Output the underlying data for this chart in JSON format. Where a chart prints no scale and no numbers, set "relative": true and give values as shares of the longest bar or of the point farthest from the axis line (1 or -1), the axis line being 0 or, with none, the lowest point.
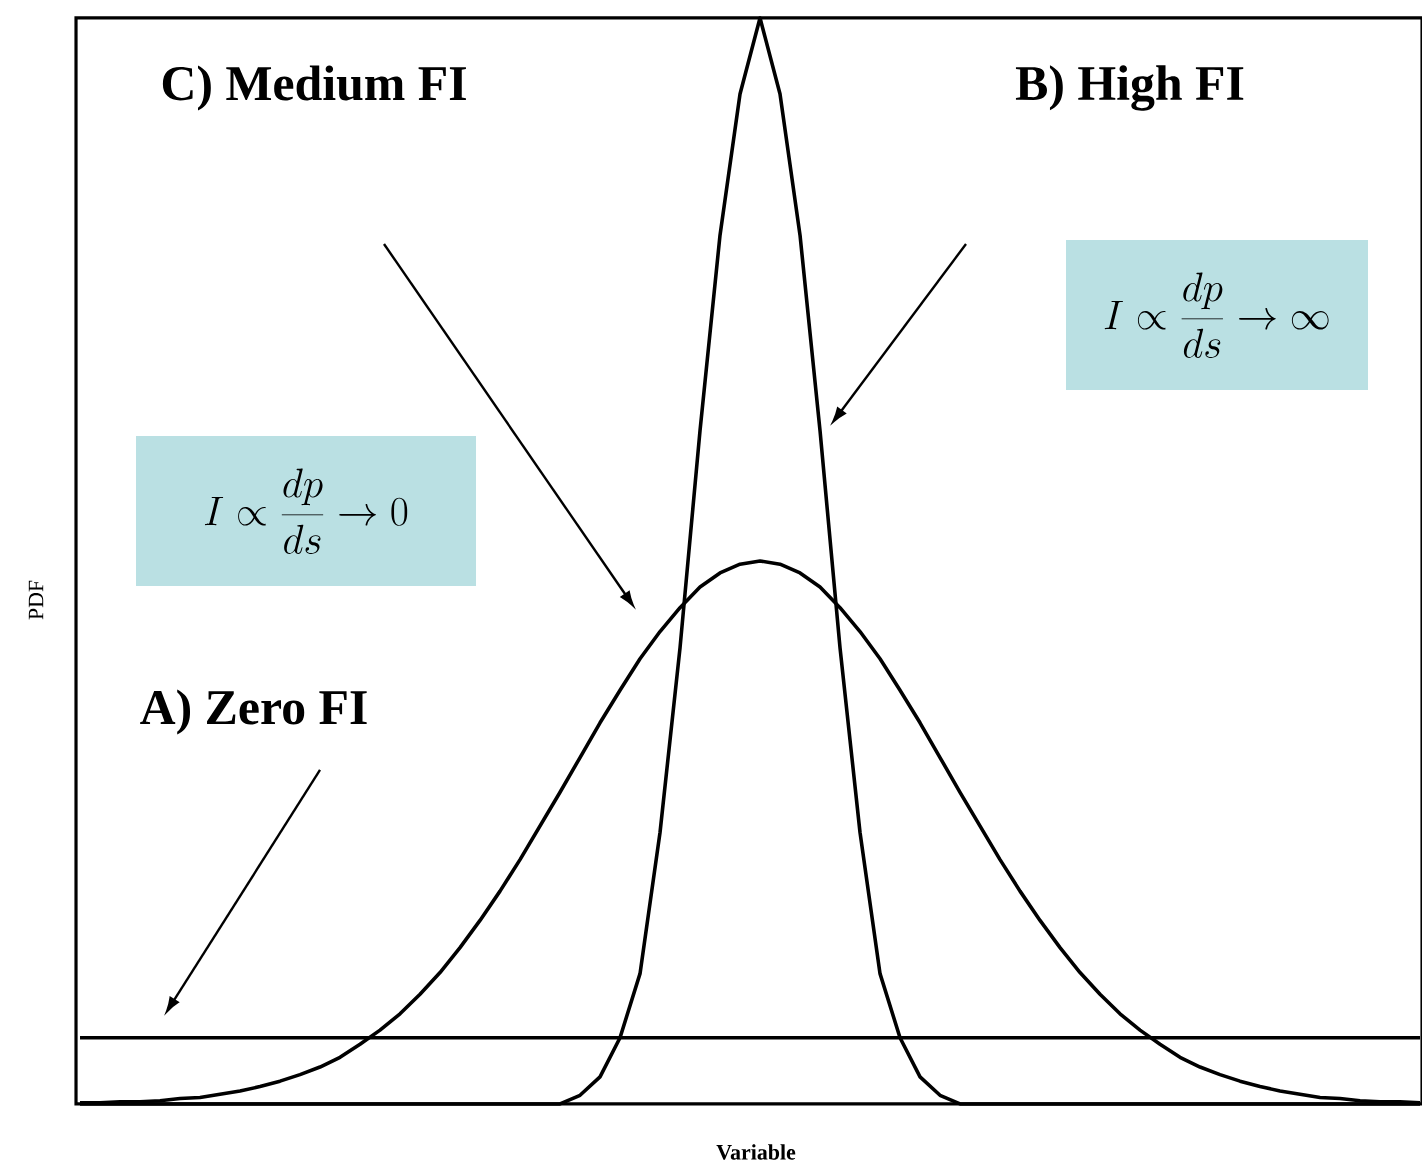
{
  "chart_data": {
    "type": "line",
    "relative": true,
    "xlabel": "Variable",
    "ylabel": "PDF",
    "marker": "none",
    "line_style": "solid",
    "categories": [
      null,
      null,
      null,
      null,
      null,
      null,
      null,
      null,
      null,
      null,
      null,
      null,
      null,
      null,
      null,
      null,
      null,
      null,
      null,
      null,
      null,
      null,
      null,
      null,
      null,
      null,
      null,
      null,
      null,
      null,
      null,
      null,
      null,
      null,
      null,
      null,
      null,
      null,
      null,
      null,
      null,
      null,
      null,
      null,
      null,
      null,
      null,
      null,
      null,
      null,
      null,
      null,
      null,
      null,
      null,
      null,
      null,
      null,
      null,
      null,
      null,
      null,
      null,
      null,
      null,
      null,
      null,
      null
    ],
    "series": [
      {
        "color": "#000000",
        "values": [
          0.061,
          0.061,
          0.061,
          0.061,
          0.061,
          0.061,
          0.061,
          0.061,
          0.061,
          0.061,
          0.061,
          0.061,
          0.061,
          0.061,
          0.061,
          0.061,
          0.061,
          0.061,
          0.061,
          0.061,
          0.061,
          0.061,
          0.061,
          0.061,
          0.061,
          0.061,
          0.061,
          0.061,
          0.061,
          0.061,
          0.061,
          0.061,
          0.061,
          0.061,
          0.061,
          0.061,
          0.061,
          0.061,
          0.061,
          0.061,
          0.061,
          0.061,
          0.061,
          0.061,
          0.061,
          0.061,
          0.061,
          0.061,
          0.061,
          0.061,
          0.061,
          0.061,
          0.061,
          0.061,
          0.061,
          0.061,
          0.061,
          0.061,
          0.061,
          0.061,
          0.061,
          0.061,
          0.061,
          0.061,
          0.061,
          0.061,
          0.061,
          0.061
        ]
      },
      {
        "color": "#000000",
        "values": [
          0.001,
          0.001,
          0.002,
          0.002,
          0.003,
          0.005,
          0.006,
          0.009,
          0.012,
          0.016,
          0.021,
          0.027,
          0.034,
          0.043,
          0.055,
          0.068,
          0.083,
          0.101,
          0.121,
          0.144,
          0.169,
          0.196,
          0.225,
          0.256,
          0.287,
          0.319,
          0.351,
          0.381,
          0.41,
          0.435,
          0.457,
          0.476,
          0.489,
          0.497,
          0.5,
          0.497,
          0.489,
          0.476,
          0.457,
          0.435,
          0.41,
          0.381,
          0.351,
          0.319,
          0.287,
          0.256,
          0.225,
          0.196,
          0.169,
          0.144,
          0.121,
          0.101,
          0.083,
          0.068,
          0.055,
          0.043,
          0.034,
          0.027,
          0.021,
          0.016,
          0.012,
          0.009,
          0.006,
          0.005,
          0.003,
          0.002,
          0.002,
          0.001
        ]
      },
      {
        "color": "#000000",
        "values": [
          0,
          0,
          0,
          0,
          0,
          0,
          0,
          0,
          0,
          0,
          0,
          0,
          0,
          0,
          0,
          0,
          0,
          0,
          0,
          0,
          0,
          0,
          0,
          0,
          0,
          0.008,
          0.025,
          0.061,
          0.12,
          0.25,
          0.42,
          0.62,
          0.8,
          0.93,
          1,
          0.93,
          0.8,
          0.62,
          0.42,
          0.25,
          0.12,
          0.061,
          0.025,
          0.008,
          0,
          0,
          0,
          0,
          0,
          0,
          0,
          0,
          0,
          0,
          0,
          0,
          0,
          0,
          0,
          0,
          0,
          0,
          0,
          0,
          0,
          0,
          0,
          0
        ]
      }
    ],
    "annotations": [
      "C)  Medium FI",
      "B) High FI",
      "A)  Zero FI",
      "I \\propto \\frac{dp}{ds} \\to \\infty",
      "I \\propto \\frac{dp}{ds} \\to 0"
    ]
  }
}
